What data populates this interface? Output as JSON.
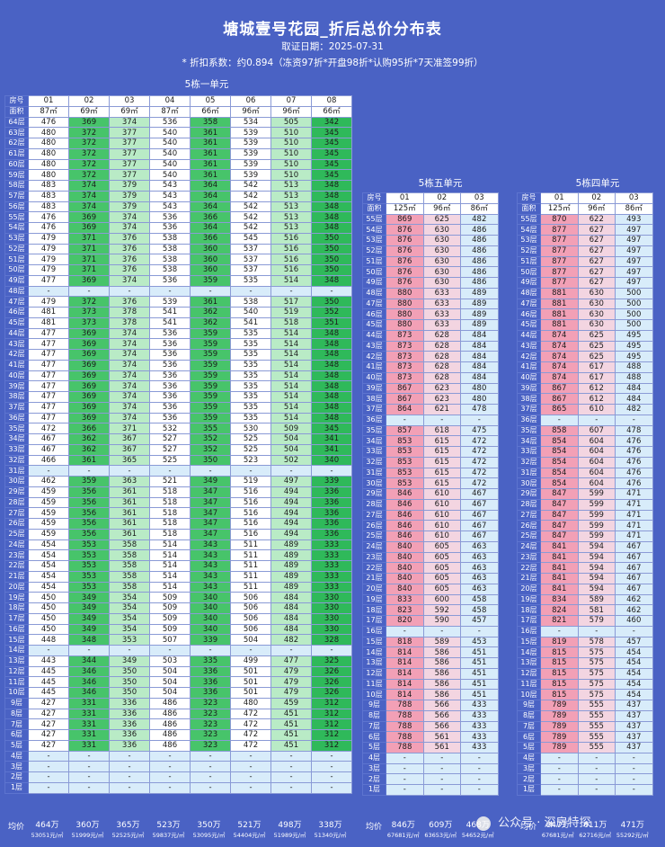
{
  "header": {
    "title": "塘城壹号花园_折后总价分布表",
    "date_line": "取证日期：2025-07-31",
    "discount_line": "* 折扣系数：约0.894（冻资97折*开盘98折*认购95折*7天准签99折）"
  },
  "labels": {
    "room": "房号",
    "area": "面积",
    "avg": "均价"
  },
  "units": [
    {
      "key": "u1",
      "title": "5栋一单元",
      "rooms": [
        "01",
        "02",
        "03",
        "04",
        "05",
        "06",
        "07",
        "08"
      ],
      "areas": [
        "87㎡",
        "69㎡",
        "69㎡",
        "87㎡",
        "66㎡",
        "96㎡",
        "96㎡",
        "66㎡"
      ],
      "col_styles": [
        "w",
        "g1",
        "g2",
        "w",
        "g1",
        "w",
        "g2",
        "g3"
      ],
      "floors_top": 64,
      "floors_bottom": 1,
      "tiers": [
        {
          "from": 64,
          "to": 64,
          "v": [
            476,
            369,
            374,
            536,
            358,
            534,
            505,
            342
          ]
        },
        {
          "from": 63,
          "to": 63,
          "v": [
            480,
            372,
            377,
            540,
            361,
            539,
            510,
            345
          ]
        },
        {
          "from": 62,
          "to": 62,
          "v": [
            480,
            372,
            377,
            540,
            361,
            539,
            510,
            345
          ]
        },
        {
          "from": 61,
          "to": 61,
          "v": [
            480,
            372,
            377,
            540,
            361,
            539,
            510,
            345
          ]
        },
        {
          "from": 60,
          "to": 60,
          "v": [
            480,
            372,
            377,
            540,
            361,
            539,
            510,
            345
          ]
        },
        {
          "from": 59,
          "to": 59,
          "v": [
            480,
            372,
            377,
            540,
            361,
            539,
            510,
            345
          ]
        },
        {
          "from": 58,
          "to": 58,
          "v": [
            483,
            374,
            379,
            543,
            364,
            542,
            513,
            348
          ]
        },
        {
          "from": 57,
          "to": 57,
          "v": [
            483,
            374,
            379,
            543,
            364,
            542,
            513,
            348
          ]
        },
        {
          "from": 56,
          "to": 56,
          "v": [
            483,
            374,
            379,
            543,
            364,
            542,
            513,
            348
          ]
        },
        {
          "from": 55,
          "to": 55,
          "v": [
            476,
            369,
            374,
            536,
            366,
            542,
            513,
            348
          ]
        },
        {
          "from": 54,
          "to": 54,
          "v": [
            476,
            369,
            374,
            536,
            364,
            542,
            513,
            348
          ]
        },
        {
          "from": 53,
          "to": 53,
          "v": [
            479,
            371,
            376,
            538,
            366,
            545,
            516,
            350
          ]
        },
        {
          "from": 52,
          "to": 52,
          "v": [
            479,
            371,
            376,
            538,
            360,
            537,
            516,
            350
          ]
        },
        {
          "from": 51,
          "to": 51,
          "v": [
            479,
            371,
            376,
            538,
            360,
            537,
            516,
            350
          ]
        },
        {
          "from": 50,
          "to": 50,
          "v": [
            479,
            371,
            376,
            538,
            360,
            537,
            516,
            350
          ]
        },
        {
          "from": 49,
          "to": 49,
          "v": [
            477,
            369,
            374,
            536,
            359,
            535,
            514,
            348
          ]
        },
        {
          "from": 48,
          "to": 48,
          "v": null
        },
        {
          "from": 47,
          "to": 47,
          "v": [
            479,
            372,
            376,
            539,
            361,
            538,
            517,
            350
          ]
        },
        {
          "from": 46,
          "to": 46,
          "v": [
            481,
            373,
            378,
            541,
            362,
            540,
            519,
            352
          ]
        },
        {
          "from": 45,
          "to": 45,
          "v": [
            481,
            373,
            378,
            541,
            362,
            541,
            518,
            351
          ]
        },
        {
          "from": 44,
          "to": 36,
          "v": [
            477,
            369,
            374,
            536,
            359,
            535,
            514,
            348
          ]
        },
        {
          "from": 35,
          "to": 35,
          "v": [
            472,
            366,
            371,
            532,
            355,
            530,
            509,
            345
          ]
        },
        {
          "from": 34,
          "to": 34,
          "v": [
            467,
            362,
            367,
            527,
            352,
            525,
            504,
            341
          ]
        },
        {
          "from": 33,
          "to": 33,
          "v": [
            467,
            362,
            367,
            527,
            352,
            525,
            504,
            341
          ]
        },
        {
          "from": 32,
          "to": 32,
          "v": [
            466,
            361,
            365,
            525,
            350,
            523,
            502,
            340
          ]
        },
        {
          "from": 31,
          "to": 31,
          "v": null
        },
        {
          "from": 30,
          "to": 30,
          "v": [
            462,
            359,
            363,
            521,
            349,
            519,
            497,
            339
          ]
        },
        {
          "from": 29,
          "to": 25,
          "v": [
            459,
            356,
            361,
            518,
            347,
            516,
            494,
            336
          ]
        },
        {
          "from": 24,
          "to": 20,
          "v": [
            454,
            353,
            358,
            514,
            343,
            511,
            489,
            333
          ]
        },
        {
          "from": 19,
          "to": 17,
          "v": [
            450,
            349,
            354,
            509,
            340,
            506,
            484,
            330
          ]
        },
        {
          "from": 16,
          "to": 16,
          "v": [
            450,
            349,
            354,
            509,
            340,
            506,
            484,
            330
          ]
        },
        {
          "from": 15,
          "to": 15,
          "v": [
            448,
            348,
            353,
            507,
            339,
            504,
            482,
            328
          ]
        },
        {
          "from": 14,
          "to": 14,
          "v": null
        },
        {
          "from": 13,
          "to": 13,
          "v": [
            443,
            344,
            349,
            503,
            335,
            499,
            477,
            325
          ]
        },
        {
          "from": 12,
          "to": 10,
          "v": [
            445,
            346,
            350,
            504,
            336,
            501,
            479,
            326
          ]
        },
        {
          "from": 9,
          "to": 9,
          "v": [
            427,
            331,
            336,
            486,
            323,
            480,
            459,
            312
          ]
        },
        {
          "from": 8,
          "to": 5,
          "v": [
            427,
            331,
            336,
            486,
            323,
            472,
            451,
            312
          ]
        },
        {
          "from": 4,
          "to": 1,
          "v": null
        }
      ],
      "avg_total": [
        "464万",
        "360万",
        "365万",
        "523万",
        "350万",
        "521万",
        "498万",
        "338万"
      ],
      "avg_unit": [
        "53051元/㎡",
        "51999元/㎡",
        "52525元/㎡",
        "59837元/㎡",
        "53095元/㎡",
        "54404元/㎡",
        "51989元/㎡",
        "51340元/㎡"
      ]
    },
    {
      "key": "u5",
      "title": "5栋五单元",
      "rooms": [
        "01",
        "02",
        "03"
      ],
      "areas": [
        "125㎡",
        "96㎡",
        "86㎡"
      ],
      "col_styles": [
        "pk",
        "pl",
        "lb"
      ],
      "floors_top": 55,
      "floors_bottom": 1,
      "tiers": [
        {
          "from": 55,
          "to": 55,
          "v": [
            869,
            625,
            482
          ]
        },
        {
          "from": 54,
          "to": 49,
          "v": [
            876,
            630,
            486
          ]
        },
        {
          "from": 48,
          "to": 45,
          "v": [
            880,
            633,
            489
          ]
        },
        {
          "from": 44,
          "to": 40,
          "v": [
            873,
            628,
            484
          ]
        },
        {
          "from": 39,
          "to": 38,
          "v": [
            867,
            623,
            480
          ]
        },
        {
          "from": 37,
          "to": 37,
          "v": [
            864,
            621,
            478
          ]
        },
        {
          "from": 36,
          "to": 36,
          "v": null
        },
        {
          "from": 35,
          "to": 35,
          "v": [
            857,
            618,
            475
          ]
        },
        {
          "from": 34,
          "to": 31,
          "v": [
            853,
            615,
            472
          ]
        },
        {
          "from": 30,
          "to": 30,
          "v": [
            853,
            615,
            472
          ]
        },
        {
          "from": 29,
          "to": 25,
          "v": [
            846,
            610,
            467
          ]
        },
        {
          "from": 24,
          "to": 20,
          "v": [
            840,
            605,
            463
          ]
        },
        {
          "from": 19,
          "to": 19,
          "v": [
            833,
            600,
            458
          ]
        },
        {
          "from": 18,
          "to": 18,
          "v": [
            823,
            592,
            458
          ]
        },
        {
          "from": 17,
          "to": 17,
          "v": [
            820,
            590,
            457
          ]
        },
        {
          "from": 16,
          "to": 16,
          "v": null
        },
        {
          "from": 15,
          "to": 15,
          "v": [
            818,
            589,
            453
          ]
        },
        {
          "from": 14,
          "to": 10,
          "v": [
            814,
            586,
            451
          ]
        },
        {
          "from": 9,
          "to": 7,
          "v": [
            788,
            566,
            433
          ]
        },
        {
          "from": 6,
          "to": 6,
          "v": [
            788,
            561,
            433
          ]
        },
        {
          "from": 5,
          "to": 5,
          "v": [
            788,
            561,
            433
          ]
        },
        {
          "from": 4,
          "to": 1,
          "v": null
        }
      ],
      "avg_total": [
        "846万",
        "609万",
        "468万"
      ],
      "avg_unit": [
        "67681元/㎡",
        "63653元/㎡",
        "54652元/㎡"
      ]
    },
    {
      "key": "u4",
      "title": "5栋四单元",
      "rooms": [
        "01",
        "02",
        "03"
      ],
      "areas": [
        "125㎡",
        "96㎡",
        "86㎡"
      ],
      "col_styles": [
        "pk",
        "pl",
        "lb"
      ],
      "floors_top": 55,
      "floors_bottom": 1,
      "tiers": [
        {
          "from": 55,
          "to": 55,
          "v": [
            870,
            622,
            493
          ]
        },
        {
          "from": 54,
          "to": 49,
          "v": [
            877,
            627,
            497
          ]
        },
        {
          "from": 48,
          "to": 45,
          "v": [
            881,
            630,
            500
          ]
        },
        {
          "from": 44,
          "to": 42,
          "v": [
            874,
            625,
            495
          ]
        },
        {
          "from": 41,
          "to": 40,
          "v": [
            874,
            617,
            488
          ]
        },
        {
          "from": 39,
          "to": 38,
          "v": [
            867,
            612,
            484
          ]
        },
        {
          "from": 37,
          "to": 37,
          "v": [
            865,
            610,
            482
          ]
        },
        {
          "from": 36,
          "to": 36,
          "v": null
        },
        {
          "from": 35,
          "to": 35,
          "v": [
            858,
            607,
            478
          ]
        },
        {
          "from": 34,
          "to": 30,
          "v": [
            854,
            604,
            476
          ]
        },
        {
          "from": 29,
          "to": 25,
          "v": [
            847,
            599,
            471
          ]
        },
        {
          "from": 24,
          "to": 20,
          "v": [
            841,
            594,
            467
          ]
        },
        {
          "from": 19,
          "to": 19,
          "v": [
            834,
            589,
            462
          ]
        },
        {
          "from": 18,
          "to": 18,
          "v": [
            824,
            581,
            462
          ]
        },
        {
          "from": 17,
          "to": 17,
          "v": [
            821,
            579,
            460
          ]
        },
        {
          "from": 16,
          "to": 16,
          "v": null
        },
        {
          "from": 15,
          "to": 15,
          "v": [
            819,
            578,
            457
          ]
        },
        {
          "from": 14,
          "to": 10,
          "v": [
            815,
            575,
            454
          ]
        },
        {
          "from": 9,
          "to": 5,
          "v": [
            789,
            555,
            437
          ]
        },
        {
          "from": 4,
          "to": 1,
          "v": null
        }
      ],
      "avg_total": [
        "847万",
        "611万",
        "471万"
      ],
      "avg_unit": [
        "67681元/㎡",
        "62716元/㎡",
        "55292元/㎡"
      ]
    }
  ],
  "watermark": "公众号 · 深房特探"
}
